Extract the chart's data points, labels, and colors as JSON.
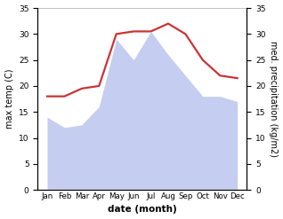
{
  "months": [
    "Jan",
    "Feb",
    "Mar",
    "Apr",
    "May",
    "Jun",
    "Jul",
    "Aug",
    "Sep",
    "Oct",
    "Nov",
    "Dec"
  ],
  "temperature": [
    18.0,
    18.0,
    19.5,
    20.0,
    30.0,
    30.5,
    30.5,
    32.0,
    30.0,
    25.0,
    22.0,
    21.5
  ],
  "precipitation": [
    14.0,
    12.0,
    12.5,
    16.0,
    29.0,
    25.0,
    30.5,
    26.0,
    22.0,
    18.0,
    18.0,
    17.0
  ],
  "temp_color": "#cc3333",
  "precip_fill_color": "#c5cef0",
  "background_color": "#ffffff",
  "ylim": [
    0,
    35
  ],
  "ylabel_left": "max temp (C)",
  "ylabel_right": "med. precipitation (kg/m2)",
  "xlabel": "date (month)",
  "temp_linewidth": 1.6,
  "yticks": [
    0,
    5,
    10,
    15,
    20,
    25,
    30,
    35
  ]
}
